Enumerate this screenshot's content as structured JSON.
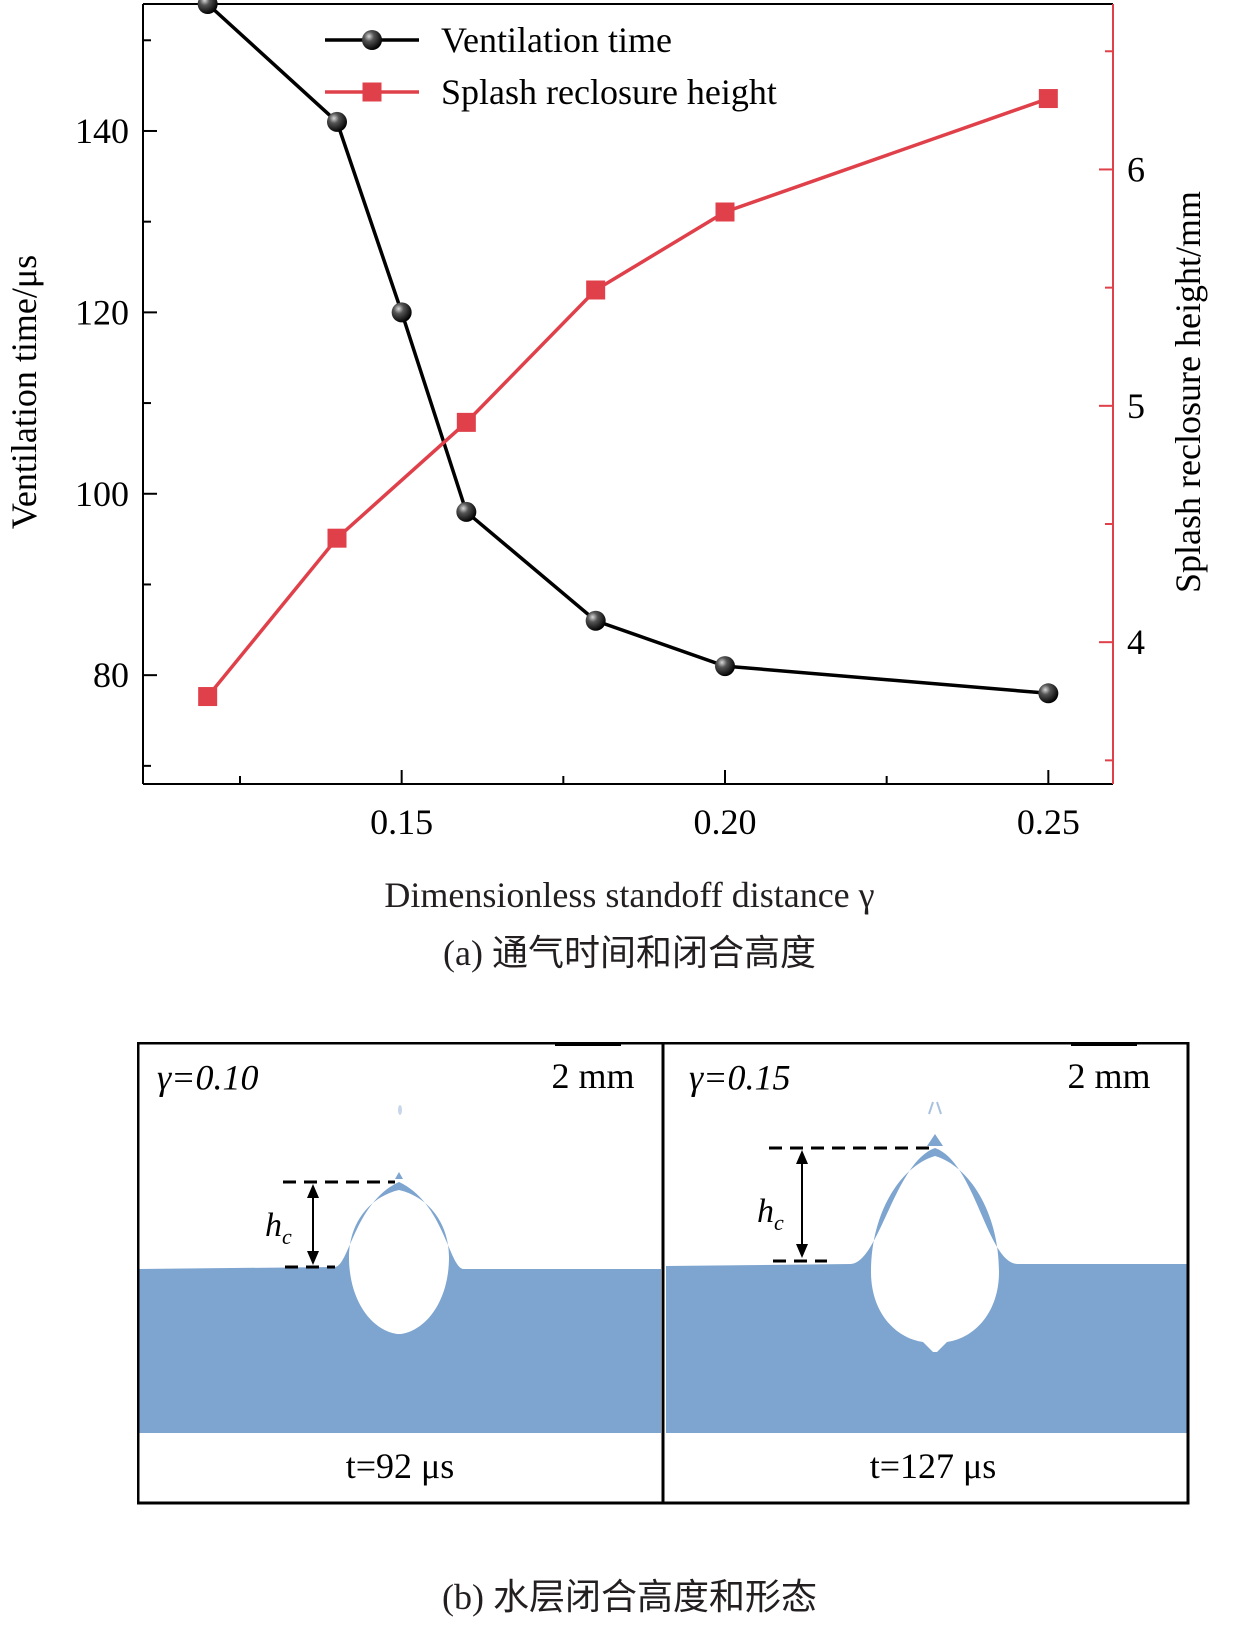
{
  "chart_data": {
    "type": "line",
    "xlabel": "Dimensionless standoff distance γ",
    "ylabel_left": "Ventilation time/μs",
    "ylabel_right": "Splash reclosure height/mm",
    "xlim": [
      0.11,
      0.26
    ],
    "ylim_left": [
      68,
      154
    ],
    "ylim_right": [
      3.4,
      6.7
    ],
    "xticks": [
      "0.15",
      "0.20",
      "0.25"
    ],
    "yticks_left": [
      "80",
      "100",
      "120",
      "140"
    ],
    "yticks_right": [
      "4",
      "5",
      "6"
    ],
    "legend_position": "top",
    "series": [
      {
        "name": "Ventilation time",
        "axis": "left",
        "color": "#000000",
        "marker": "sphere",
        "x": [
          0.12,
          0.14,
          0.15,
          0.16,
          0.18,
          0.2,
          0.25
        ],
        "values": [
          154,
          141,
          120,
          98,
          86,
          81,
          78
        ]
      },
      {
        "name": "Splash reclosure height",
        "axis": "right",
        "color": "#e0404a",
        "marker": "square",
        "x": [
          0.12,
          0.14,
          0.16,
          0.18,
          0.2,
          0.25
        ],
        "values": [
          3.77,
          4.44,
          4.93,
          5.49,
          5.82,
          6.3
        ]
      }
    ]
  },
  "caption_a": "(a) 通气时间和闭合高度",
  "panels": [
    {
      "gamma": "γ=0.10",
      "scale": "2 mm",
      "hc_label": "hc",
      "time": "t=92 μs"
    },
    {
      "gamma": "γ=0.15",
      "scale": "2 mm",
      "hc_label": "hc",
      "time": "t=127 μs"
    }
  ],
  "caption_b": "(b) 水层闭合高度和形态",
  "colors": {
    "water": "#7ea5cf",
    "red_series": "#e0404a",
    "black_series": "#000000"
  }
}
